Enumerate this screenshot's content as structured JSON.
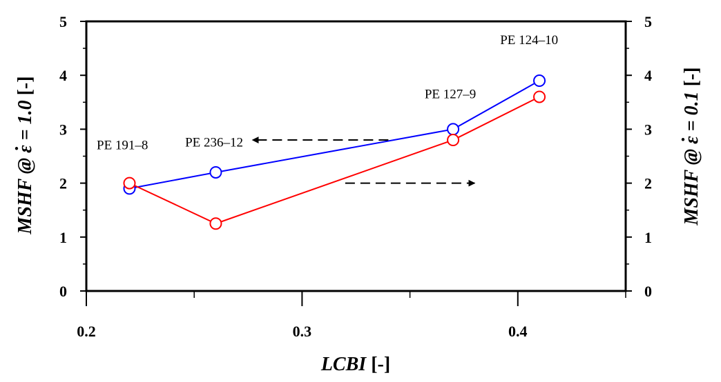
{
  "chart_data": {
    "type": "line",
    "title": "",
    "xlabel": {
      "main": "LCBI",
      "unit": " [-]"
    },
    "ylabel_left": {
      "main": "MSHF @ ",
      "symbol": "ε",
      "condition": " = 1.0",
      "unit": " [-]"
    },
    "ylabel_right": {
      "main": "MSHF @ ",
      "symbol": "ε",
      "condition": " = 0.1",
      "unit": " [-]"
    },
    "xlim": [
      0.2,
      0.45
    ],
    "ylim": [
      0,
      5
    ],
    "x_ticks": [
      "0.2",
      "0.3",
      "0.4"
    ],
    "x_tick_values": [
      0.2,
      0.3,
      0.4
    ],
    "x_minor_ticks": [
      0.25,
      0.35,
      0.45
    ],
    "y_ticks": [
      "0",
      "1",
      "2",
      "3",
      "4",
      "5"
    ],
    "y_tick_values": [
      0,
      1,
      2,
      3,
      4,
      5
    ],
    "y_minor_ticks": [
      0.5,
      1.5,
      2.5,
      3.5,
      4.5
    ],
    "grid": false,
    "series": [
      {
        "name": "MSHF @ ε̇ = 1.0 (left axis)",
        "axis": "left",
        "color": "#0000ff",
        "x": [
          0.22,
          0.26,
          0.37,
          0.41
        ],
        "y": [
          1.9,
          2.2,
          3.0,
          3.9
        ]
      },
      {
        "name": "MSHF @ ε̇ = 0.1 (right axis)",
        "axis": "right",
        "color": "#ff0000",
        "x": [
          0.22,
          0.26,
          0.37,
          0.41
        ],
        "y": [
          2.0,
          1.25,
          2.8,
          3.6
        ]
      }
    ],
    "annotations": [
      {
        "text": "PE 191–8",
        "x": 0.2,
        "y": 2.55
      },
      {
        "text": "PE 236–12",
        "x": 0.241,
        "y": 2.6
      },
      {
        "text": "PE 127–9",
        "x": 0.352,
        "y": 3.5
      },
      {
        "text": "PE 124–10",
        "x": 0.387,
        "y": 4.5
      }
    ],
    "arrows": [
      {
        "label": "points to left axis",
        "from": [
          0.34,
          2.8
        ],
        "to": [
          0.277,
          2.8
        ]
      },
      {
        "label": "points to right axis",
        "from": [
          0.32,
          2.0
        ],
        "to": [
          0.38,
          2.0
        ]
      }
    ]
  }
}
